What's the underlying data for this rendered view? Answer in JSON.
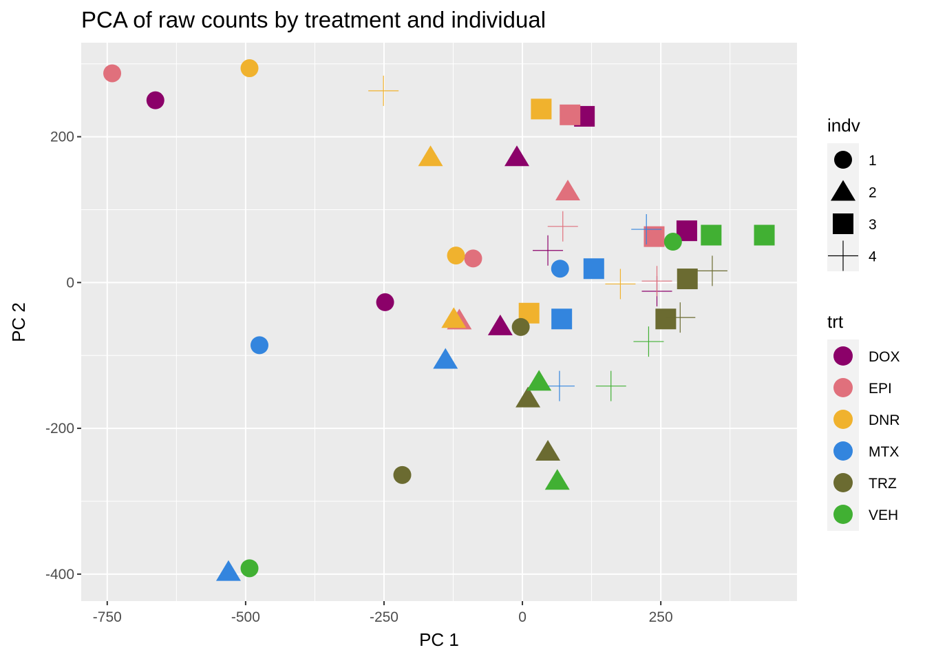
{
  "chart_data": {
    "type": "scatter",
    "title": "PCA of raw counts by treatment and individual",
    "xlabel": "PC 1",
    "ylabel": "PC 2",
    "xlim": [
      -797,
      496
    ],
    "ylim": [
      -437,
      329
    ],
    "x_ticks": [
      -750,
      -500,
      -250,
      0,
      250
    ],
    "x_tick_labels": [
      "-750",
      "-500",
      "-250",
      "0",
      "250"
    ],
    "y_ticks": [
      -400,
      -200,
      0,
      200
    ],
    "y_tick_labels": [
      "-400",
      "-200",
      "0",
      "200"
    ],
    "grid": true,
    "legend_position": "right",
    "colors": {
      "DOX": "#8b0169",
      "EPI": "#e0707c",
      "DNR": "#f0b22e",
      "MTX": "#3385de",
      "TRZ": "#6b6b31",
      "VEH": "#41b033",
      "panel": "#ebebeb",
      "grid": "#ffffff"
    },
    "shape_legend": {
      "title": "indv",
      "entries": [
        {
          "label": "1",
          "shape": "circle"
        },
        {
          "label": "2",
          "shape": "triangle"
        },
        {
          "label": "3",
          "shape": "square"
        },
        {
          "label": "4",
          "shape": "plus"
        }
      ]
    },
    "color_legend": {
      "title": "trt",
      "entries": [
        "DOX",
        "EPI",
        "DNR",
        "MTX",
        "TRZ",
        "VEH"
      ]
    },
    "points": [
      {
        "trt": "DOX",
        "indv": "1",
        "x": -663,
        "y": 250
      },
      {
        "trt": "DOX",
        "indv": "1",
        "x": -248,
        "y": -27
      },
      {
        "trt": "DOX",
        "indv": "2",
        "x": -10,
        "y": 172
      },
      {
        "trt": "DOX",
        "indv": "2",
        "x": -40,
        "y": -60
      },
      {
        "trt": "DOX",
        "indv": "3",
        "x": 112,
        "y": 228
      },
      {
        "trt": "DOX",
        "indv": "3",
        "x": 297,
        "y": 71
      },
      {
        "trt": "DOX",
        "indv": "4",
        "x": 46,
        "y": 44
      },
      {
        "trt": "DOX",
        "indv": "4",
        "x": 243,
        "y": -12
      },
      {
        "trt": "EPI",
        "indv": "1",
        "x": -741,
        "y": 287
      },
      {
        "trt": "EPI",
        "indv": "1",
        "x": -89,
        "y": 33
      },
      {
        "trt": "EPI",
        "indv": "2",
        "x": 82,
        "y": 125
      },
      {
        "trt": "EPI",
        "indv": "2",
        "x": -114,
        "y": -52
      },
      {
        "trt": "EPI",
        "indv": "3",
        "x": 86,
        "y": 230
      },
      {
        "trt": "EPI",
        "indv": "3",
        "x": 238,
        "y": 63
      },
      {
        "trt": "EPI",
        "indv": "4",
        "x": 73,
        "y": 77
      },
      {
        "trt": "EPI",
        "indv": "4",
        "x": 243,
        "y": 2
      },
      {
        "trt": "DNR",
        "indv": "1",
        "x": -493,
        "y": 294
      },
      {
        "trt": "DNR",
        "indv": "1",
        "x": -120,
        "y": 37
      },
      {
        "trt": "DNR",
        "indv": "2",
        "x": -166,
        "y": 172
      },
      {
        "trt": "DNR",
        "indv": "2",
        "x": -124,
        "y": -50
      },
      {
        "trt": "DNR",
        "indv": "3",
        "x": 34,
        "y": 238
      },
      {
        "trt": "DNR",
        "indv": "3",
        "x": 12,
        "y": -42
      },
      {
        "trt": "DNR",
        "indv": "4",
        "x": -251,
        "y": 263
      },
      {
        "trt": "DNR",
        "indv": "4",
        "x": 177,
        "y": -2
      },
      {
        "trt": "MTX",
        "indv": "1",
        "x": -475,
        "y": -86
      },
      {
        "trt": "MTX",
        "indv": "1",
        "x": 68,
        "y": 19
      },
      {
        "trt": "MTX",
        "indv": "2",
        "x": -139,
        "y": -106
      },
      {
        "trt": "MTX",
        "indv": "2",
        "x": -531,
        "y": -397
      },
      {
        "trt": "MTX",
        "indv": "3",
        "x": 129,
        "y": 19
      },
      {
        "trt": "MTX",
        "indv": "3",
        "x": 71,
        "y": -50
      },
      {
        "trt": "MTX",
        "indv": "4",
        "x": 224,
        "y": 73
      },
      {
        "trt": "MTX",
        "indv": "4",
        "x": 67,
        "y": -142
      },
      {
        "trt": "TRZ",
        "indv": "1",
        "x": -3,
        "y": -61
      },
      {
        "trt": "TRZ",
        "indv": "1",
        "x": -217,
        "y": -264
      },
      {
        "trt": "TRZ",
        "indv": "2",
        "x": 10,
        "y": -159
      },
      {
        "trt": "TRZ",
        "indv": "2",
        "x": 46,
        "y": -232
      },
      {
        "trt": "TRZ",
        "indv": "3",
        "x": 298,
        "y": 5
      },
      {
        "trt": "TRZ",
        "indv": "3",
        "x": 259,
        "y": -50
      },
      {
        "trt": "TRZ",
        "indv": "4",
        "x": 343,
        "y": 16
      },
      {
        "trt": "TRZ",
        "indv": "4",
        "x": 285,
        "y": -48
      },
      {
        "trt": "VEH",
        "indv": "1",
        "x": 272,
        "y": 56
      },
      {
        "trt": "VEH",
        "indv": "1",
        "x": -493,
        "y": -392
      },
      {
        "trt": "VEH",
        "indv": "2",
        "x": 30,
        "y": -136
      },
      {
        "trt": "VEH",
        "indv": "2",
        "x": 63,
        "y": -272
      },
      {
        "trt": "VEH",
        "indv": "3",
        "x": 341,
        "y": 65
      },
      {
        "trt": "VEH",
        "indv": "3",
        "x": 437,
        "y": 65
      },
      {
        "trt": "VEH",
        "indv": "4",
        "x": 228,
        "y": -81
      },
      {
        "trt": "VEH",
        "indv": "4",
        "x": 160,
        "y": -142
      }
    ]
  }
}
